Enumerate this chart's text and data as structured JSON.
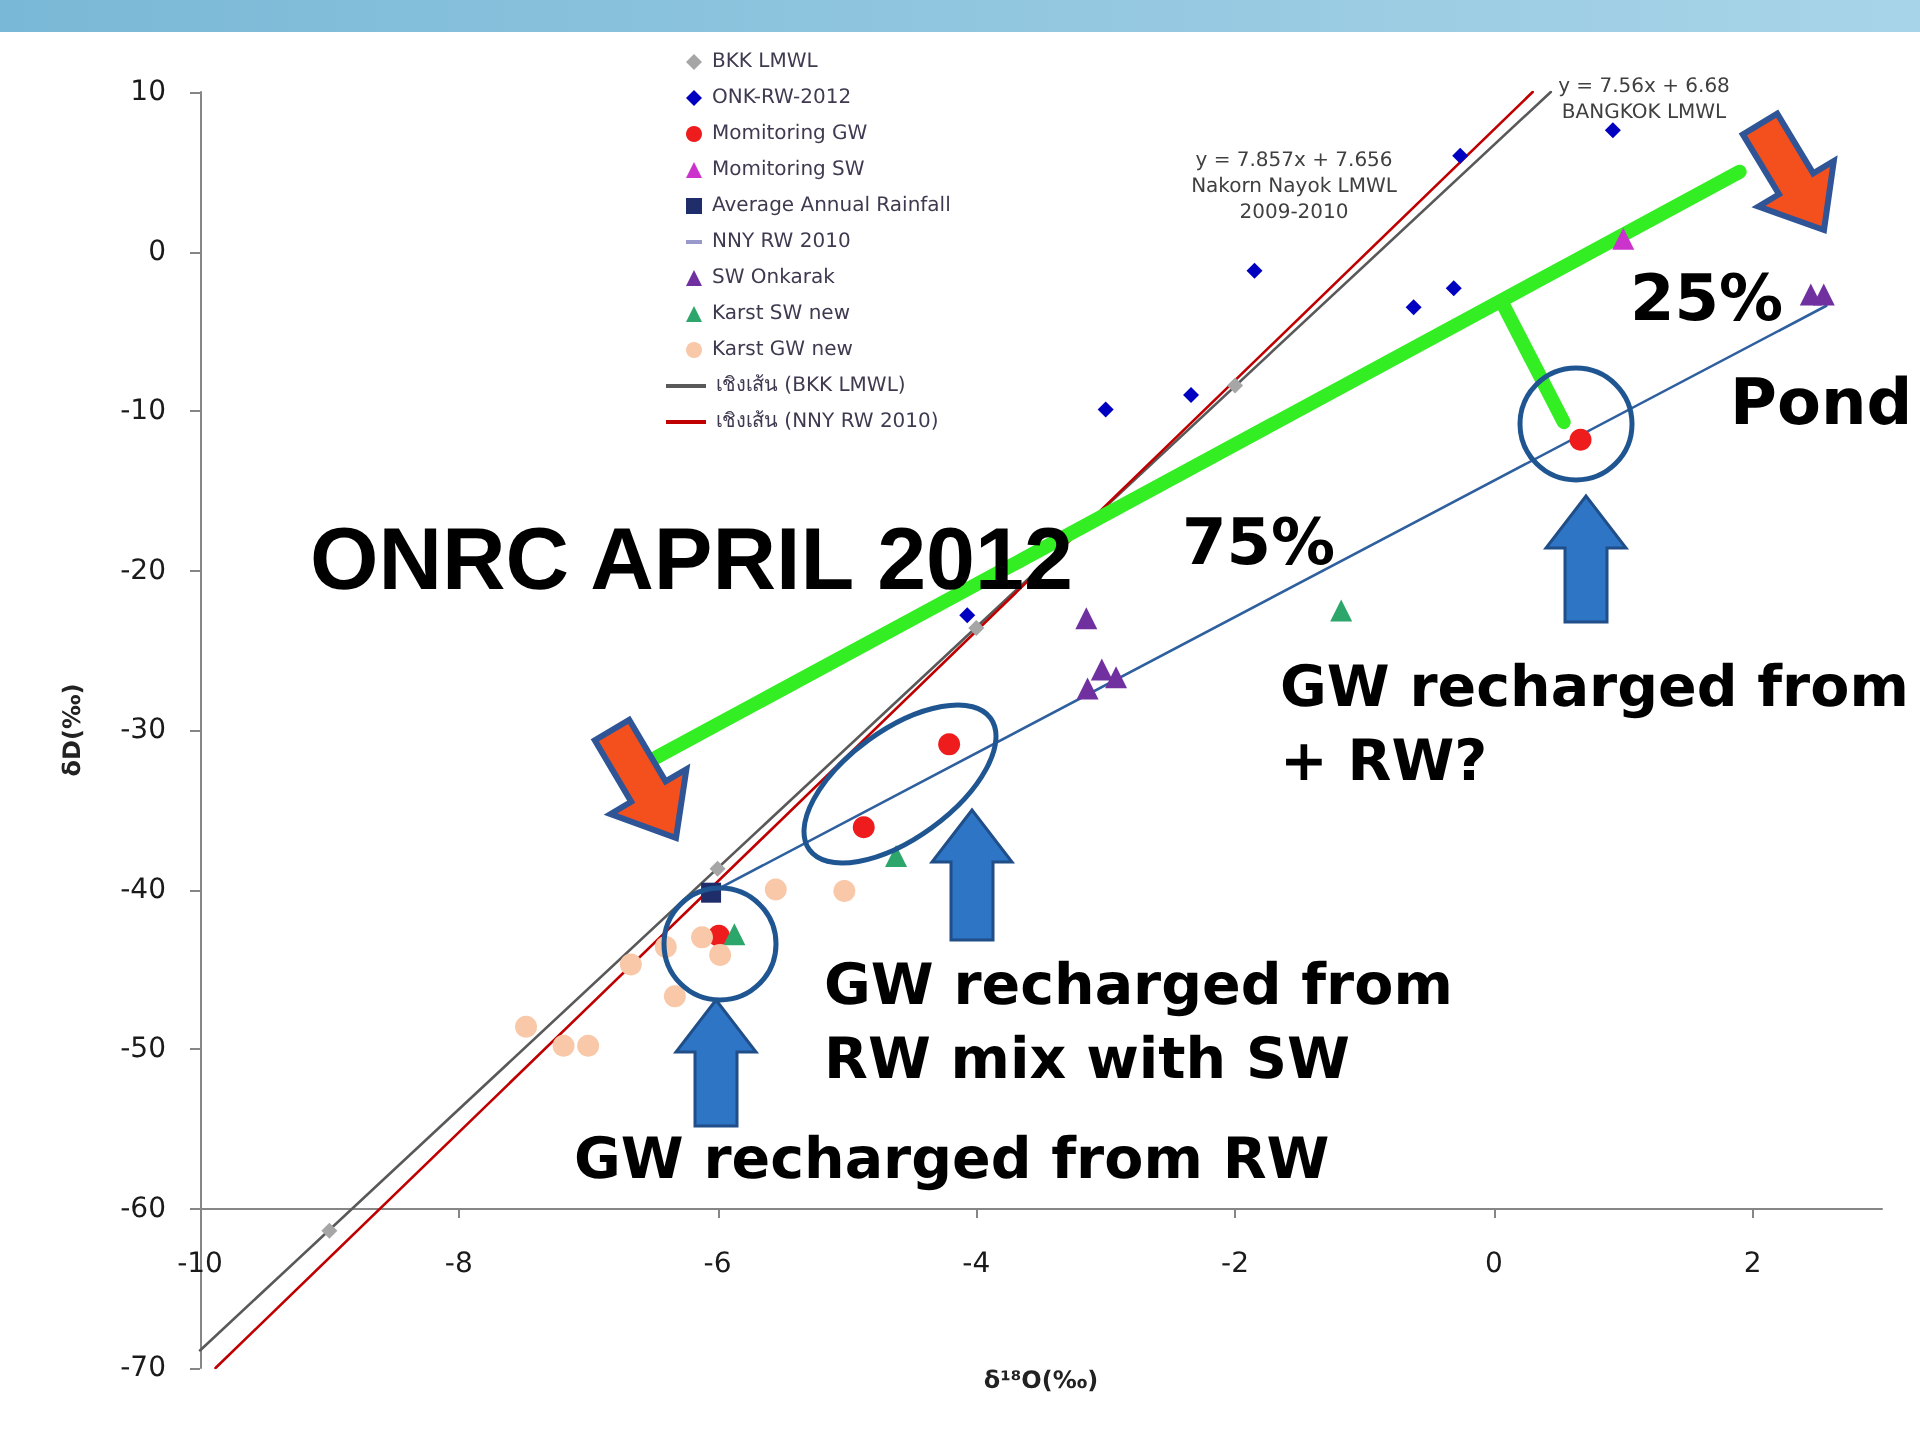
{
  "chart_data": {
    "type": "scatter",
    "title": "ONRC APRIL 2012",
    "xlabel": "δ¹⁸O(‰)",
    "ylabel": "δD(‰)",
    "annotations": [
      "y = 7.857x + 7.656\nNakorn Nayok LMWL\n2009-2010",
      "y = 7.56x + 6.68\nBANGKOK LMWL",
      "75%",
      "25%",
      "Pond",
      "GW recharged from\n+ RW?",
      "GW recharged from\nRW mix with SW",
      "GW recharged from RW"
    ],
    "xlim": [
      -10,
      3
    ],
    "xticks": [
      -10,
      -8,
      -6,
      -4,
      -2,
      0,
      2
    ],
    "ylim": [
      -70,
      10
    ],
    "yticks": [
      -70,
      -60,
      -50,
      -40,
      -30,
      -20,
      -10,
      0,
      10
    ],
    "grid": false,
    "legend": "top left",
    "line_style": "solid",
    "series": [
      {
        "name": "BKK LMWL",
        "marker": "diamond",
        "color": "#a6a6a6",
        "x": [
          -9,
          -6,
          -4,
          -2
        ],
        "values": [
          -61.4,
          -38.7,
          -23.6,
          -8.4
        ]
      },
      {
        "name": "ONK-RW-2012",
        "marker": "diamond",
        "color": "#0000c0",
        "x": [
          0.92,
          -0.26,
          -1.85,
          -0.62,
          -0.31,
          -2.34,
          -3.0,
          -4.07
        ],
        "values": [
          7.6,
          6.0,
          -1.2,
          -3.5,
          -2.3,
          -9.0,
          -9.9,
          -22.8
        ]
      },
      {
        "name": "Momitoring GW",
        "marker": "circle",
        "color": "#ee1c1c",
        "x": [
          0.67,
          -4.21,
          -4.87,
          -5.99
        ],
        "values": [
          -11.8,
          -30.9,
          -36.1,
          -42.9
        ]
      },
      {
        "name": "Momitoring SW",
        "marker": "triangle",
        "color": "#cc33cc",
        "x": [
          1.0
        ],
        "values": [
          0.8
        ]
      },
      {
        "name": "Average Annual Rainfall",
        "marker": "square",
        "color": "#1f2d6b",
        "x": [
          -6.05
        ],
        "values": [
          -40.2
        ]
      },
      {
        "name": "NNY RW 2010",
        "color": "#9999cc"
      },
      {
        "name": "SW Onkarak",
        "marker": "triangle",
        "color": "#7030a0",
        "x": [
          -3.15,
          -3.03,
          -2.92,
          -3.14,
          2.45,
          2.55
        ],
        "values": [
          -23.0,
          -26.2,
          -26.7,
          -27.4,
          -2.7,
          -2.7
        ]
      },
      {
        "name": "Karst SW new",
        "marker": "triangle",
        "color": "#2ca66b",
        "x": [
          -1.18,
          -4.62,
          -5.87
        ],
        "values": [
          -22.5,
          -37.9,
          -42.8
        ]
      },
      {
        "name": "Karst GW new",
        "marker": "circle",
        "color": "#f8c8a8",
        "x": [
          -5.55,
          -5.02,
          -6.12,
          -5.98,
          -6.4,
          -6.67,
          -6.33,
          -7.48,
          -7.19,
          -7.0
        ],
        "values": [
          -40.0,
          -40.1,
          -43.0,
          -44.1,
          -43.6,
          -44.7,
          -46.7,
          -48.6,
          -49.8,
          -49.8
        ]
      },
      {
        "name": "เชิงเส้น (BKK LMWL)",
        "type": "line",
        "marker": "none",
        "color": "#595959",
        "x": [
          -10,
          0.44
        ],
        "values": [
          -68.9,
          10.0
        ]
      },
      {
        "name": "เชิงเส้น (NNY RW 2010)",
        "type": "line",
        "marker": "none",
        "color": "#c00000",
        "x": [
          -9.88,
          0.3
        ],
        "values": [
          -70,
          10
        ]
      },
      {
        "type": "line",
        "marker": "none",
        "color": "#2e5f9e",
        "x": [
          -6.05,
          2.57
        ],
        "values": [
          -40.2,
          -3.4
        ]
      },
      {
        "type": "line",
        "marker": "none",
        "color": "#33ee22",
        "x": [
          -6.47,
          1.9
        ],
        "values": [
          -31.7,
          5.0
        ]
      },
      {
        "type": "line",
        "marker": "none",
        "color": "#33ee22",
        "x": [
          0.07,
          0.54
        ],
        "values": [
          -3.3,
          -10.7
        ]
      }
    ]
  }
}
